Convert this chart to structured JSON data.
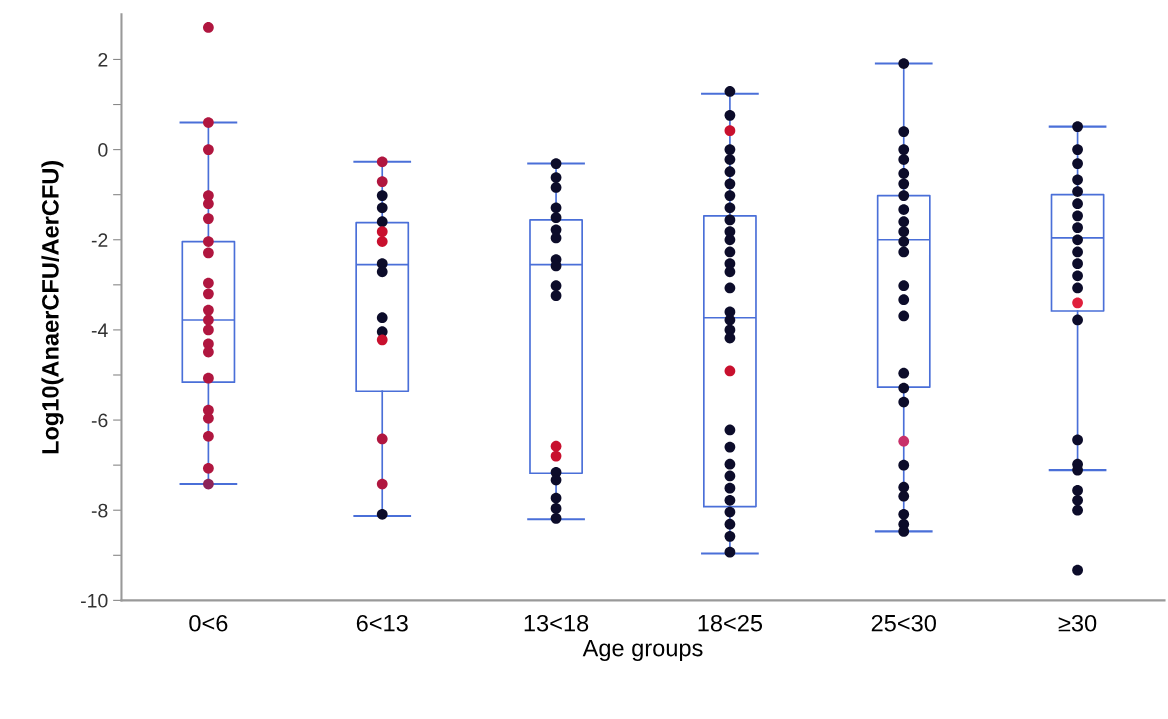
{
  "chart_data": {
    "type": "box",
    "xlabel": "Age groups",
    "ylabel": "Log10(AnaerCFU/AerCFU)",
    "categories": [
      "0<6",
      "6<13",
      "13<18",
      "18<25",
      "25<30",
      "≥30"
    ],
    "color": "#4a6fd8",
    "boxes": [
      {
        "low": -7.42,
        "q1": -5.16,
        "median": -3.78,
        "q3": -2.04,
        "high": 0.6
      },
      {
        "low": -8.13,
        "q1": -5.36,
        "median": -2.55,
        "q3": -1.62,
        "high": -0.27
      },
      {
        "low": -8.2,
        "q1": -7.18,
        "median": -2.55,
        "q3": -1.56,
        "high": -0.31
      },
      {
        "low": -8.96,
        "q1": -7.92,
        "median": -3.73,
        "q3": -1.47,
        "high": 1.24
      },
      {
        "low": -8.47,
        "q1": -5.27,
        "median": -2.0,
        "q3": -1.02,
        "high": 1.91
      },
      {
        "low": -7.11,
        "q1": -3.58,
        "median": -1.96,
        "q3": -1.0,
        "high": 0.51
      }
    ],
    "series": [
      {
        "type": "scatter",
        "x": [
          "0<6",
          "0<6",
          "0<6",
          "0<6",
          "0<6",
          "0<6",
          "0<6",
          "0<6",
          "0<6",
          "0<6",
          "0<6",
          "0<6",
          "0<6",
          "0<6",
          "0<6",
          "0<6",
          "0<6",
          "0<6",
          "0<6",
          "0<6"
        ],
        "values": [
          2.71,
          0.6,
          0,
          -1.02,
          -1.2,
          -1.53,
          -2.04,
          -2.29,
          -2.96,
          -3.2,
          -3.56,
          -3.78,
          -4.0,
          -4.31,
          -4.49,
          -5.07,
          -5.78,
          -5.96,
          -6.36,
          -7.07
        ],
        "color": "#b0163f"
      },
      {
        "type": "scatter",
        "x": [
          "0<6"
        ],
        "values": [
          -7.42
        ],
        "color": "#8c2458"
      },
      {
        "type": "scatter",
        "x": [
          "6<13",
          "6<13",
          "6<13",
          "6<13",
          "6<13",
          "6<13",
          "6<13",
          "6<13",
          "6<13",
          "6<13",
          "6<13",
          "6<13",
          "6<13",
          "6<13",
          "6<13"
        ],
        "values": [
          -0.27,
          -0.71,
          -1.02,
          -1.29,
          -1.6,
          -1.82,
          -2.04,
          -2.53,
          -2.71,
          -3.73,
          -4.04,
          -4.22,
          -6.42,
          -7.42,
          -8.09
        ],
        "colors": [
          "#b0163f",
          "#b0163f",
          "#0c0c2a",
          "#0c0c2a",
          "#0c0c2a",
          "#c8102e",
          "#c8102e",
          "#0c0c2a",
          "#0c0c2a",
          "#0c0c2a",
          "#0c0c2a",
          "#c8102e",
          "#b0163f",
          "#b0163f",
          "#0c0c2a"
        ]
      },
      {
        "type": "scatter",
        "x": [
          "13<18",
          "13<18",
          "13<18",
          "13<18",
          "13<18",
          "13<18",
          "13<18",
          "13<18",
          "13<18",
          "13<18",
          "13<18",
          "13<18",
          "13<18",
          "13<18",
          "13<18",
          "13<18",
          "13<18"
        ],
        "values": [
          -0.31,
          -0.62,
          -0.84,
          -1.29,
          -1.51,
          -1.78,
          -1.96,
          -2.44,
          -2.58,
          -3.02,
          -3.24,
          -6.58,
          -6.8,
          -7.16,
          -7.33,
          -7.73,
          -7.96
        ],
        "colors": [
          "#0c0c2a",
          "#0c0c2a",
          "#0c0c2a",
          "#0c0c2a",
          "#0c0c2a",
          "#0c0c2a",
          "#0c0c2a",
          "#0c0c2a",
          "#0c0c2a",
          "#0c0c2a",
          "#0c0c2a",
          "#c8102e",
          "#c8102e",
          "#0c0c2a",
          "#0c0c2a",
          "#0c0c2a",
          "#0c0c2a"
        ]
      },
      {
        "type": "scatter",
        "x": [
          "13<18"
        ],
        "values": [
          -8.18
        ],
        "color": "#0c0c2a"
      },
      {
        "type": "scatter",
        "x": [
          "18<25",
          "18<25",
          "18<25",
          "18<25",
          "18<25",
          "18<25",
          "18<25",
          "18<25",
          "18<25",
          "18<25",
          "18<25",
          "18<25",
          "18<25",
          "18<25",
          "18<25",
          "18<25",
          "18<25",
          "18<25",
          "18<25",
          "18<25",
          "18<25",
          "18<25",
          "18<25",
          "18<25",
          "18<25",
          "18<25",
          "18<25",
          "18<25",
          "18<25",
          "18<25",
          "18<25"
        ],
        "values": [
          1.29,
          0.76,
          0.42,
          0,
          -0.22,
          -0.49,
          -0.76,
          -1.02,
          -1.29,
          -1.56,
          -1.82,
          -2.0,
          -2.27,
          -2.53,
          -2.71,
          -3.07,
          -3.6,
          -3.78,
          -4.0,
          -4.18,
          -4.91,
          -6.22,
          -6.6,
          -6.98,
          -7.24,
          -7.51,
          -7.78,
          -8.04,
          -8.31,
          -8.58,
          -8.93
        ],
        "colors": [
          "#0c0c2a",
          "#0c0c2a",
          "#c8102e",
          "#0c0c2a",
          "#0c0c2a",
          "#0c0c2a",
          "#0c0c2a",
          "#0c0c2a",
          "#0c0c2a",
          "#0c0c2a",
          "#0c0c2a",
          "#0c0c2a",
          "#0c0c2a",
          "#0c0c2a",
          "#0c0c2a",
          "#0c0c2a",
          "#0c0c2a",
          "#0c0c2a",
          "#0c0c2a",
          "#0c0c2a",
          "#c8102e",
          "#0c0c2a",
          "#0c0c2a",
          "#0c0c2a",
          "#0c0c2a",
          "#0c0c2a",
          "#0c0c2a",
          "#0c0c2a",
          "#0c0c2a",
          "#0c0c2a",
          "#0c0c2a"
        ]
      },
      {
        "type": "scatter",
        "x": [
          "25<30",
          "25<30",
          "25<30",
          "25<30",
          "25<30",
          "25<30",
          "25<30",
          "25<30",
          "25<30",
          "25<30",
          "25<30",
          "25<30",
          "25<30",
          "25<30",
          "25<30",
          "25<30",
          "25<30",
          "25<30",
          "25<30",
          "25<30",
          "25<30",
          "25<30",
          "25<30",
          "25<30",
          "25<30"
        ],
        "values": [
          1.91,
          0.4,
          0,
          -0.22,
          -0.53,
          -0.76,
          -1.02,
          -1.33,
          -1.6,
          -1.82,
          -2.04,
          -2.27,
          -3.02,
          -3.33,
          -3.69,
          -4.96,
          -5.29,
          -5.6,
          -6.47,
          -7.0,
          -7.49,
          -7.69,
          -8.09,
          -8.31,
          -8.47
        ],
        "colors": [
          "#0c0c2a",
          "#0c0c2a",
          "#0c0c2a",
          "#0c0c2a",
          "#0c0c2a",
          "#0c0c2a",
          "#0c0c2a",
          "#0c0c2a",
          "#0c0c2a",
          "#0c0c2a",
          "#0c0c2a",
          "#0c0c2a",
          "#0c0c2a",
          "#0c0c2a",
          "#0c0c2a",
          "#0c0c2a",
          "#0c0c2a",
          "#0c0c2a",
          "#c8306a",
          "#0c0c2a",
          "#0c0c2a",
          "#0c0c2a",
          "#0c0c2a",
          "#0c0c2a",
          "#0c0c2a"
        ]
      },
      {
        "type": "scatter",
        "x": [
          "≥30",
          "≥30",
          "≥30",
          "≥30",
          "≥30",
          "≥30",
          "≥30",
          "≥30",
          "≥30",
          "≥30",
          "≥30",
          "≥30",
          "≥30",
          "≥30",
          "≥30",
          "≥30",
          "≥30",
          "≥30",
          "≥30",
          "≥30",
          "≥30",
          "≥30"
        ],
        "values": [
          0.51,
          0,
          -0.31,
          -0.67,
          -0.93,
          -1.2,
          -1.47,
          -1.73,
          -2.0,
          -2.27,
          -2.53,
          -2.8,
          -3.07,
          -3.4,
          -3.78,
          -6.44,
          -6.98,
          -7.11,
          -7.56,
          -7.78,
          -8.0,
          -9.33
        ],
        "colors": [
          "#0c0c2a",
          "#0c0c2a",
          "#0c0c2a",
          "#0c0c2a",
          "#0c0c2a",
          "#0c0c2a",
          "#0c0c2a",
          "#0c0c2a",
          "#0c0c2a",
          "#0c0c2a",
          "#0c0c2a",
          "#0c0c2a",
          "#0c0c2a",
          "#e0203c",
          "#0c0c2a",
          "#0c0c2a",
          "#0c0c2a",
          "#0c0c2a",
          "#0c0c2a",
          "#0c0c2a",
          "#0c0c2a",
          "#0c0c2a"
        ]
      }
    ],
    "ylim": [
      -10,
      3.0
    ],
    "yticks": [
      -10,
      {
        "value": -9,
        "label": null
      },
      -8,
      {
        "value": -7,
        "label": null
      },
      -6,
      {
        "value": -5,
        "label": null
      },
      -4,
      {
        "value": -3,
        "label": null
      },
      -2,
      {
        "value": -1,
        "label": null
      },
      0,
      {
        "value": 1,
        "label": null
      },
      2
    ],
    "marker": "circle",
    "grid": false,
    "legend": false
  }
}
